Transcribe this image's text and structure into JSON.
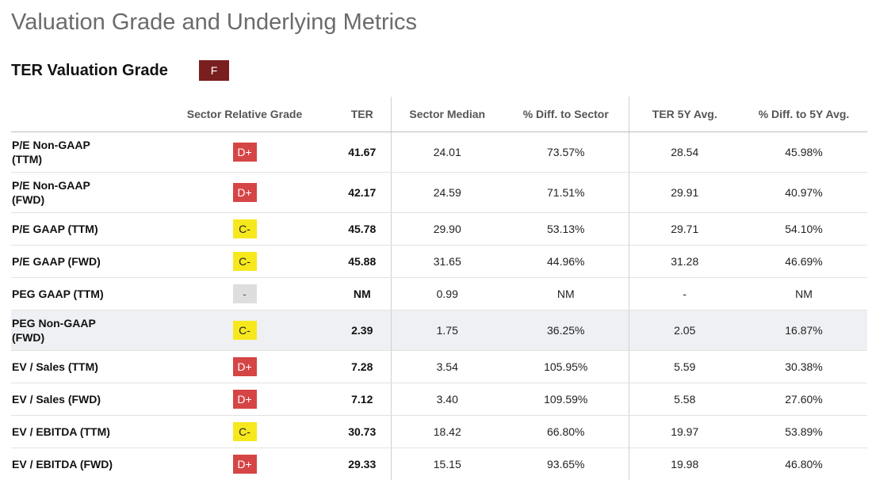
{
  "page": {
    "title": "Valuation Grade and Underlying Metrics"
  },
  "grade": {
    "title": "TER Valuation Grade",
    "value": "F",
    "color": "#7a1f1f"
  },
  "table": {
    "headers": {
      "metric": "",
      "grade": "Sector Relative Grade",
      "ter": "TER",
      "sector_median": "Sector Median",
      "diff_sector": "% Diff. to Sector",
      "avg5y": "TER 5Y Avg.",
      "diff_5y": "% Diff. to 5Y Avg."
    },
    "rows": [
      {
        "metric_l1": "P/E Non-GAAP",
        "metric_l2": "(TTM)",
        "grade": "D+",
        "grade_color": "red",
        "ter": "41.67",
        "sector_median": "24.01",
        "diff_sector": "73.57%",
        "avg5y": "28.54",
        "diff_5y": "45.98%"
      },
      {
        "metric_l1": "P/E Non-GAAP",
        "metric_l2": "(FWD)",
        "grade": "D+",
        "grade_color": "red",
        "ter": "42.17",
        "sector_median": "24.59",
        "diff_sector": "71.51%",
        "avg5y": "29.91",
        "diff_5y": "40.97%"
      },
      {
        "metric_l1": "P/E GAAP (TTM)",
        "metric_l2": "",
        "grade": "C-",
        "grade_color": "yellow",
        "ter": "45.78",
        "sector_median": "29.90",
        "diff_sector": "53.13%",
        "avg5y": "29.71",
        "diff_5y": "54.10%"
      },
      {
        "metric_l1": "P/E GAAP (FWD)",
        "metric_l2": "",
        "grade": "C-",
        "grade_color": "yellow",
        "ter": "45.88",
        "sector_median": "31.65",
        "diff_sector": "44.96%",
        "avg5y": "31.28",
        "diff_5y": "46.69%"
      },
      {
        "metric_l1": "PEG GAAP (TTM)",
        "metric_l2": "",
        "grade": "-",
        "grade_color": "gray",
        "ter": "NM",
        "sector_median": "0.99",
        "diff_sector": "NM",
        "avg5y": "-",
        "diff_5y": "NM"
      },
      {
        "metric_l1": "PEG Non-GAAP",
        "metric_l2": "(FWD)",
        "grade": "C-",
        "grade_color": "yellow",
        "ter": "2.39",
        "sector_median": "1.75",
        "diff_sector": "36.25%",
        "avg5y": "2.05",
        "diff_5y": "16.87%"
      },
      {
        "metric_l1": "EV / Sales (TTM)",
        "metric_l2": "",
        "grade": "D+",
        "grade_color": "red",
        "ter": "7.28",
        "sector_median": "3.54",
        "diff_sector": "105.95%",
        "avg5y": "5.59",
        "diff_5y": "30.38%"
      },
      {
        "metric_l1": "EV / Sales (FWD)",
        "metric_l2": "",
        "grade": "D+",
        "grade_color": "red",
        "ter": "7.12",
        "sector_median": "3.40",
        "diff_sector": "109.59%",
        "avg5y": "5.58",
        "diff_5y": "27.60%"
      },
      {
        "metric_l1": "EV / EBITDA (TTM)",
        "metric_l2": "",
        "grade": "C-",
        "grade_color": "yellow",
        "ter": "30.73",
        "sector_median": "18.42",
        "diff_sector": "66.80%",
        "avg5y": "19.97",
        "diff_5y": "53.89%"
      },
      {
        "metric_l1": "EV / EBITDA (FWD)",
        "metric_l2": "",
        "grade": "D+",
        "grade_color": "red",
        "ter": "29.33",
        "sector_median": "15.15",
        "diff_sector": "93.65%",
        "avg5y": "19.98",
        "diff_5y": "46.80%"
      }
    ]
  },
  "colors": {
    "grade_red": "#d64545",
    "grade_yellow": "#f7e81e",
    "grade_gray": "#dedede",
    "highlight_row": "#eef0f4"
  }
}
